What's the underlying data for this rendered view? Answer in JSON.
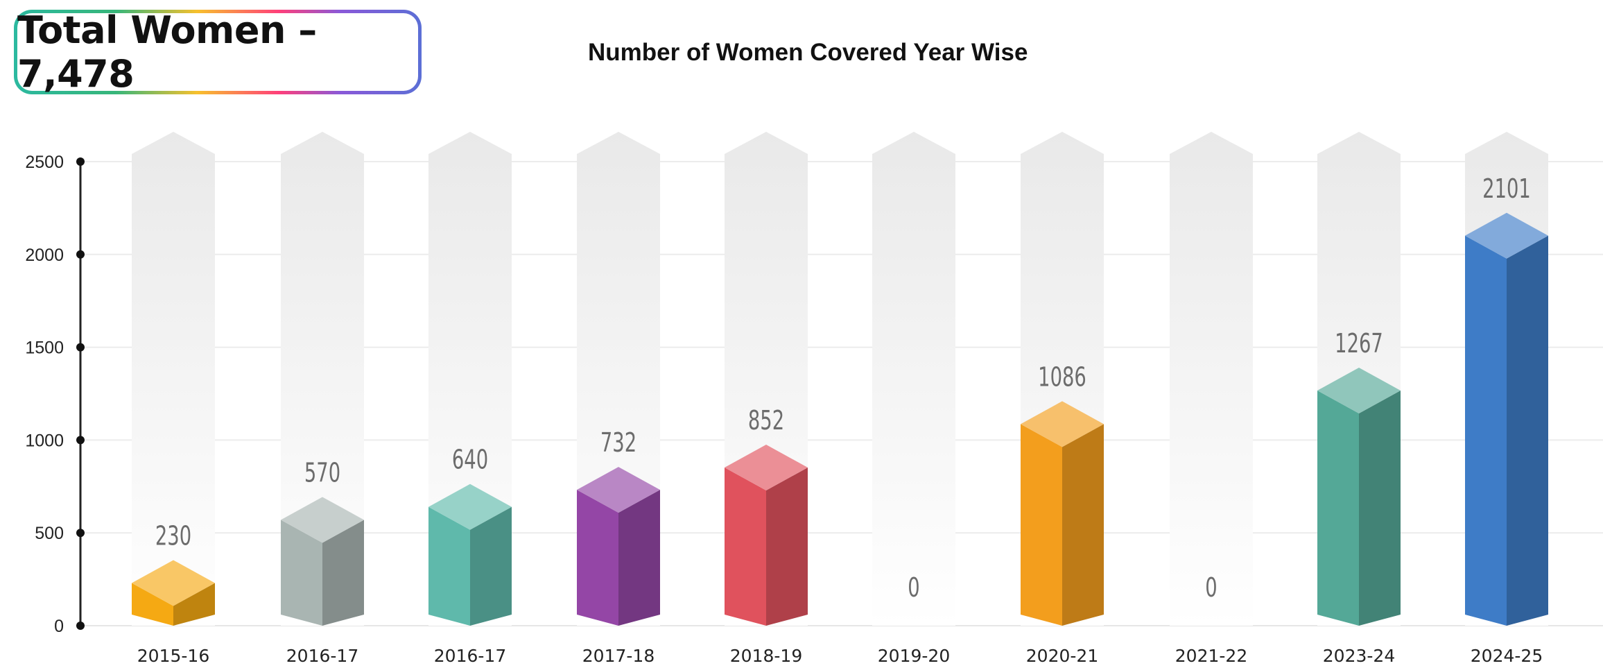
{
  "header": {
    "total_label": "Total Women – 7,478"
  },
  "chart_data": {
    "type": "bar",
    "title": "Number of Women Covered Year Wise",
    "xlabel": "",
    "ylabel": "",
    "categories": [
      "2015-16",
      "2016-17",
      "2016-17",
      "2017-18",
      "2018-19",
      "2019-20",
      "2020-21",
      "2021-22",
      "2023-24",
      "2024-25"
    ],
    "values": [
      230,
      570,
      640,
      732,
      852,
      0,
      1086,
      0,
      1267,
      2101
    ],
    "value_labels": [
      "230",
      "570",
      "640",
      "732",
      "852",
      "0",
      "1086",
      "0",
      "1267",
      "2101"
    ],
    "yticks": [
      0,
      500,
      1000,
      1500,
      2000,
      2500
    ],
    "ytick_labels": [
      "0",
      "500",
      "1000",
      "1500",
      "2000",
      "2500"
    ],
    "ylim": [
      0,
      2500
    ],
    "grid": true,
    "legend": "none",
    "bar_colors": [
      "#f5a913",
      "#a9b5b2",
      "#5fb9ab",
      "#9446a6",
      "#e0525d",
      "#d8d8d8",
      "#f39e1d",
      "#d8d8d8",
      "#54a897",
      "#3e7cc7"
    ]
  }
}
